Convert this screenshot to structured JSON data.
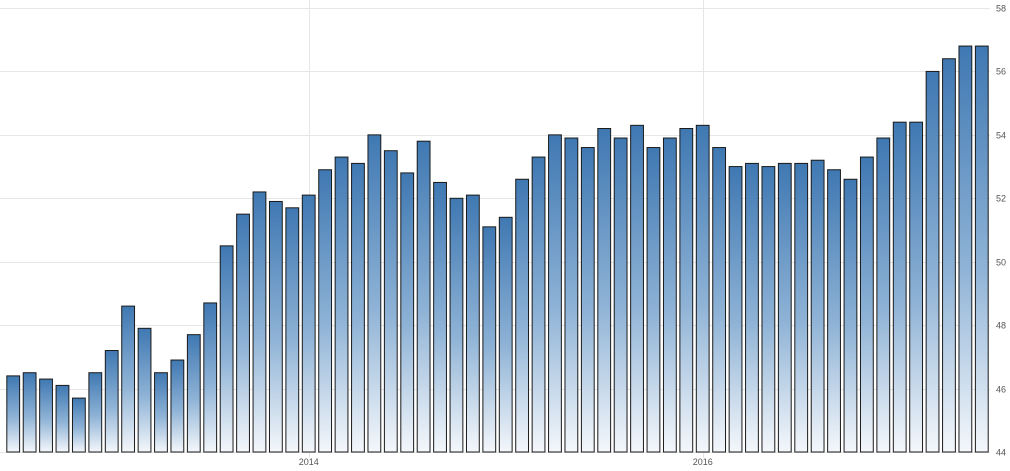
{
  "chart_data": {
    "type": "bar",
    "title": "",
    "xlabel": "",
    "ylabel": "",
    "ylim": [
      44,
      58
    ],
    "y_ticks": [
      "44",
      "46",
      "48",
      "50",
      "52",
      "54",
      "56",
      "58"
    ],
    "x_tick_labels": [
      {
        "label": "2014",
        "category_index": 18
      },
      {
        "label": "2016",
        "category_index": 42
      }
    ],
    "grid": true,
    "y_axis_position": "right",
    "bar_color": "#4a80b8",
    "values": [
      46.4,
      46.5,
      46.3,
      46.1,
      45.7,
      46.5,
      47.2,
      48.6,
      47.9,
      46.5,
      46.9,
      47.7,
      48.7,
      50.5,
      51.5,
      52.2,
      51.9,
      51.7,
      52.1,
      52.9,
      53.3,
      53.1,
      54.0,
      53.5,
      52.8,
      53.8,
      52.5,
      52.0,
      52.1,
      51.1,
      51.4,
      52.6,
      53.3,
      54.0,
      53.9,
      53.6,
      54.2,
      53.9,
      54.3,
      53.6,
      53.9,
      54.2,
      54.3,
      53.6,
      53.0,
      53.1,
      53.0,
      53.1,
      53.1,
      53.2,
      52.9,
      52.6,
      53.3,
      53.9,
      54.4,
      54.4,
      56.0,
      56.4,
      56.8,
      56.8
    ]
  }
}
